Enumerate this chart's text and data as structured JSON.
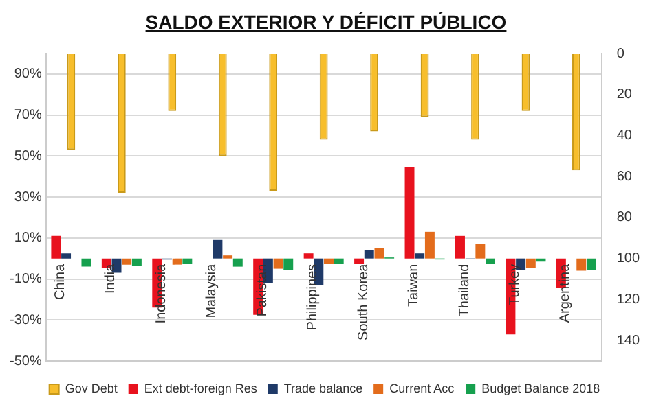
{
  "chart_data": {
    "type": "bar",
    "title": "SALDO EXTERIOR Y DÉFICIT PÚBLICO",
    "categories": [
      "China",
      "India",
      "Indonesia",
      "Malaysia",
      "Pakistan",
      "Philippines",
      "South Korea",
      "Taiwan",
      "Thailand",
      "Turkey",
      "Argentina"
    ],
    "series": [
      {
        "name": "Ext debt-foreign Res",
        "color": "#e8121e",
        "values": [
          11,
          -4.5,
          -24,
          0,
          -27.5,
          2.5,
          -2.8,
          44.5,
          11,
          -37,
          -14.5
        ]
      },
      {
        "name": "Trade balance",
        "color": "#1f3a68",
        "values": [
          2.5,
          -7,
          -0.5,
          9,
          -12,
          -13,
          4,
          2.5,
          -0.3,
          -5.5,
          0
        ]
      },
      {
        "name": "Current Acc",
        "color": "#e36c1c",
        "values": [
          0,
          -3,
          -3,
          1.5,
          -5,
          -2.5,
          5,
          13,
          7,
          -4.5,
          -6
        ]
      },
      {
        "name": "Budget Balance 2018",
        "color": "#16a04e",
        "values": [
          -4,
          -3.5,
          -2.5,
          -4,
          -5.5,
          -2.5,
          0.5,
          -0.5,
          -2.5,
          -1.5,
          -5.5
        ]
      },
      {
        "name": "Gov Debt",
        "color": "#f7be2c",
        "axis": "y2",
        "values": [
          47,
          68,
          28,
          50,
          67,
          42,
          38,
          31,
          42,
          28,
          57
        ]
      }
    ],
    "ylim": [
      -50,
      100
    ],
    "yticks": [
      {
        "value": -50,
        "label": "-50%"
      },
      {
        "value": -30,
        "label": "-30%"
      },
      {
        "value": -10,
        "label": "-10%"
      },
      {
        "value": 10,
        "label": "10%"
      },
      {
        "value": 30,
        "label": "30%"
      },
      {
        "value": 50,
        "label": "50%"
      },
      {
        "value": 70,
        "label": "70%"
      },
      {
        "value": 90,
        "label": "90%"
      }
    ],
    "y2lim": [
      150,
      0
    ],
    "y2ticks": [
      0,
      20,
      40,
      60,
      80,
      100,
      120,
      140
    ],
    "grid": "y",
    "legend": "bottom"
  }
}
